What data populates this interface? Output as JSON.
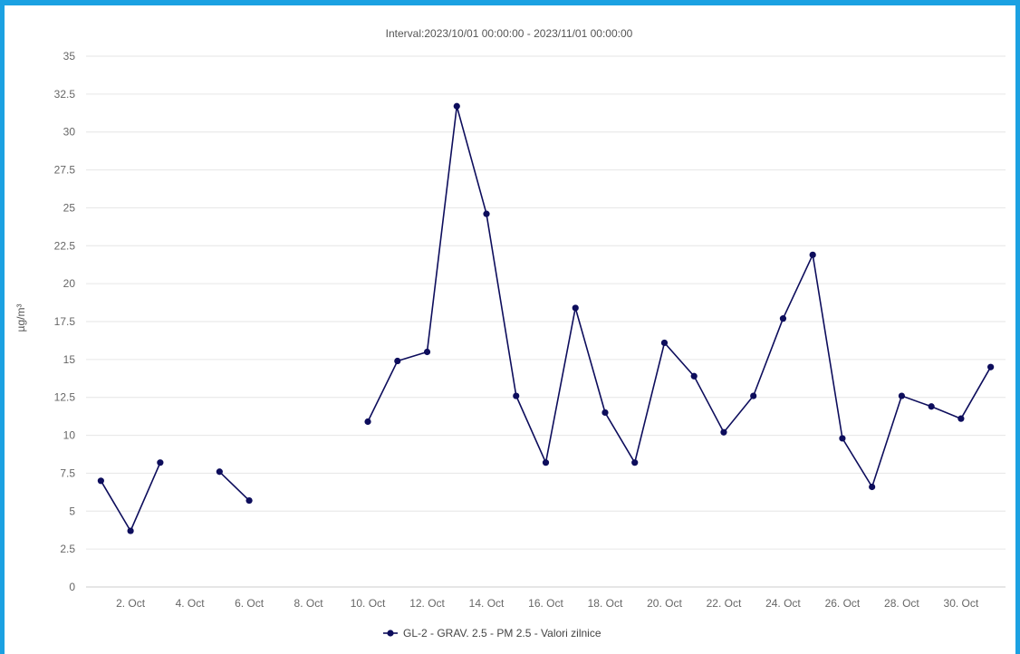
{
  "chart_data": {
    "type": "line",
    "title": "Interval:2023/10/01 00:00:00 - 2023/11/01 00:00:00",
    "xlabel": "",
    "ylabel": "µg/m³",
    "ylim": [
      0,
      35
    ],
    "yticks": [
      "0",
      "2.5",
      "5",
      "7.5",
      "10",
      "12.5",
      "15",
      "17.5",
      "20",
      "22.5",
      "25",
      "27.5",
      "30",
      "32.5",
      "35"
    ],
    "xlim": [
      1,
      31
    ],
    "xtick_days": [
      2,
      4,
      6,
      8,
      10,
      12,
      14,
      16,
      18,
      20,
      22,
      24,
      26,
      28,
      30
    ],
    "xticks": [
      "2. Oct",
      "4. Oct",
      "6. Oct",
      "8. Oct",
      "10. Oct",
      "12. Oct",
      "14. Oct",
      "16. Oct",
      "18. Oct",
      "20. Oct",
      "22. Oct",
      "24. Oct",
      "26. Oct",
      "28. Oct",
      "30. Oct"
    ],
    "grid": true,
    "legend_position": "bottom-center",
    "series": [
      {
        "name": "GL-2 - GRAV. 2.5 - PM 2.5 - Valori zilnice",
        "color": "#0d0d5c",
        "x": [
          1,
          2,
          3,
          4,
          5,
          6,
          7,
          8,
          9,
          10,
          11,
          12,
          13,
          14,
          15,
          16,
          17,
          18,
          19,
          20,
          21,
          22,
          23,
          24,
          25,
          26,
          27,
          28,
          29,
          30,
          31
        ],
        "values": [
          7.0,
          3.7,
          8.2,
          null,
          7.6,
          5.7,
          null,
          null,
          null,
          10.9,
          14.9,
          15.5,
          31.7,
          24.6,
          12.6,
          8.2,
          18.4,
          11.5,
          8.2,
          16.1,
          13.9,
          10.2,
          12.6,
          17.7,
          21.9,
          9.8,
          6.6,
          12.6,
          11.9,
          11.1,
          14.5
        ]
      }
    ]
  }
}
